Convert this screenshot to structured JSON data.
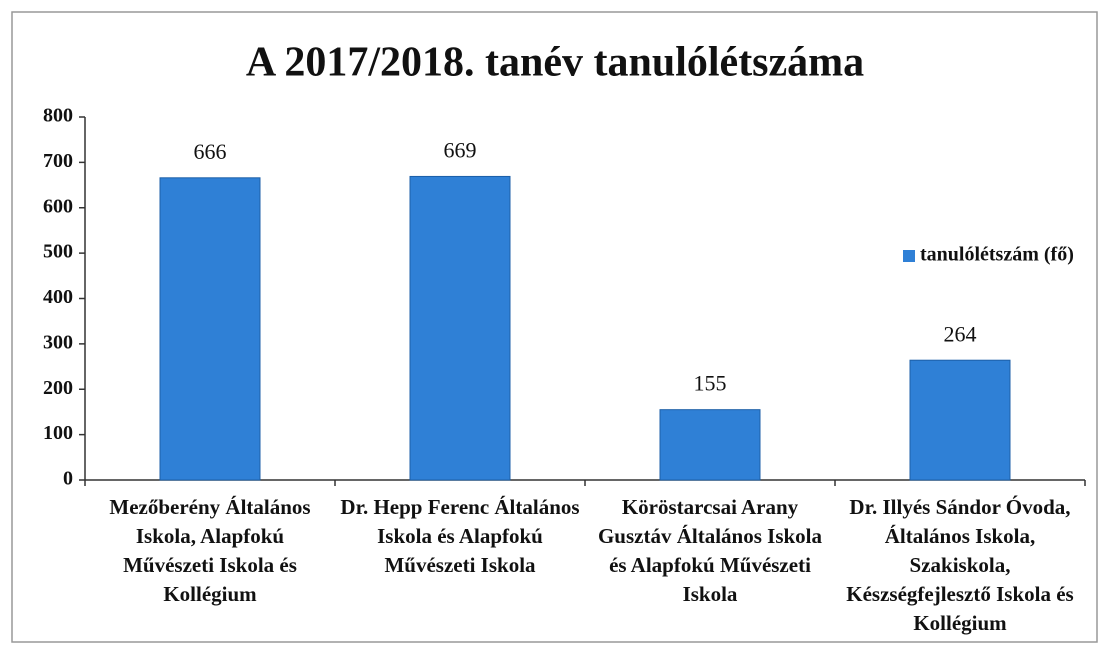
{
  "chart_data": {
    "type": "bar",
    "title": "A 2017/2018. tanév tanulólétszáma",
    "categories": [
      "Mezőberény Általános Iskola, Alapfokú Művészeti Iskola és Kollégium",
      "Dr. Hepp Ferenc Általános Iskola és Alapfokú Művészeti Iskola",
      "Köröstarcsai Arany Gusztáv Általános Iskola és Alapfokú Művészeti Iskola",
      "Dr. Illyés Sándor Óvoda, Általános Iskola, Szakiskola, Készségfejlesztő Iskola és Kollégium"
    ],
    "series": [
      {
        "name": "tanulólétszám (fő)",
        "color": "#2f80d6",
        "values": [
          666,
          669,
          155,
          264
        ]
      }
    ],
    "ylim": [
      0,
      800
    ],
    "yticks": [
      0,
      100,
      200,
      300,
      400,
      500,
      600,
      700,
      800
    ],
    "grid": false,
    "legend": "right"
  }
}
